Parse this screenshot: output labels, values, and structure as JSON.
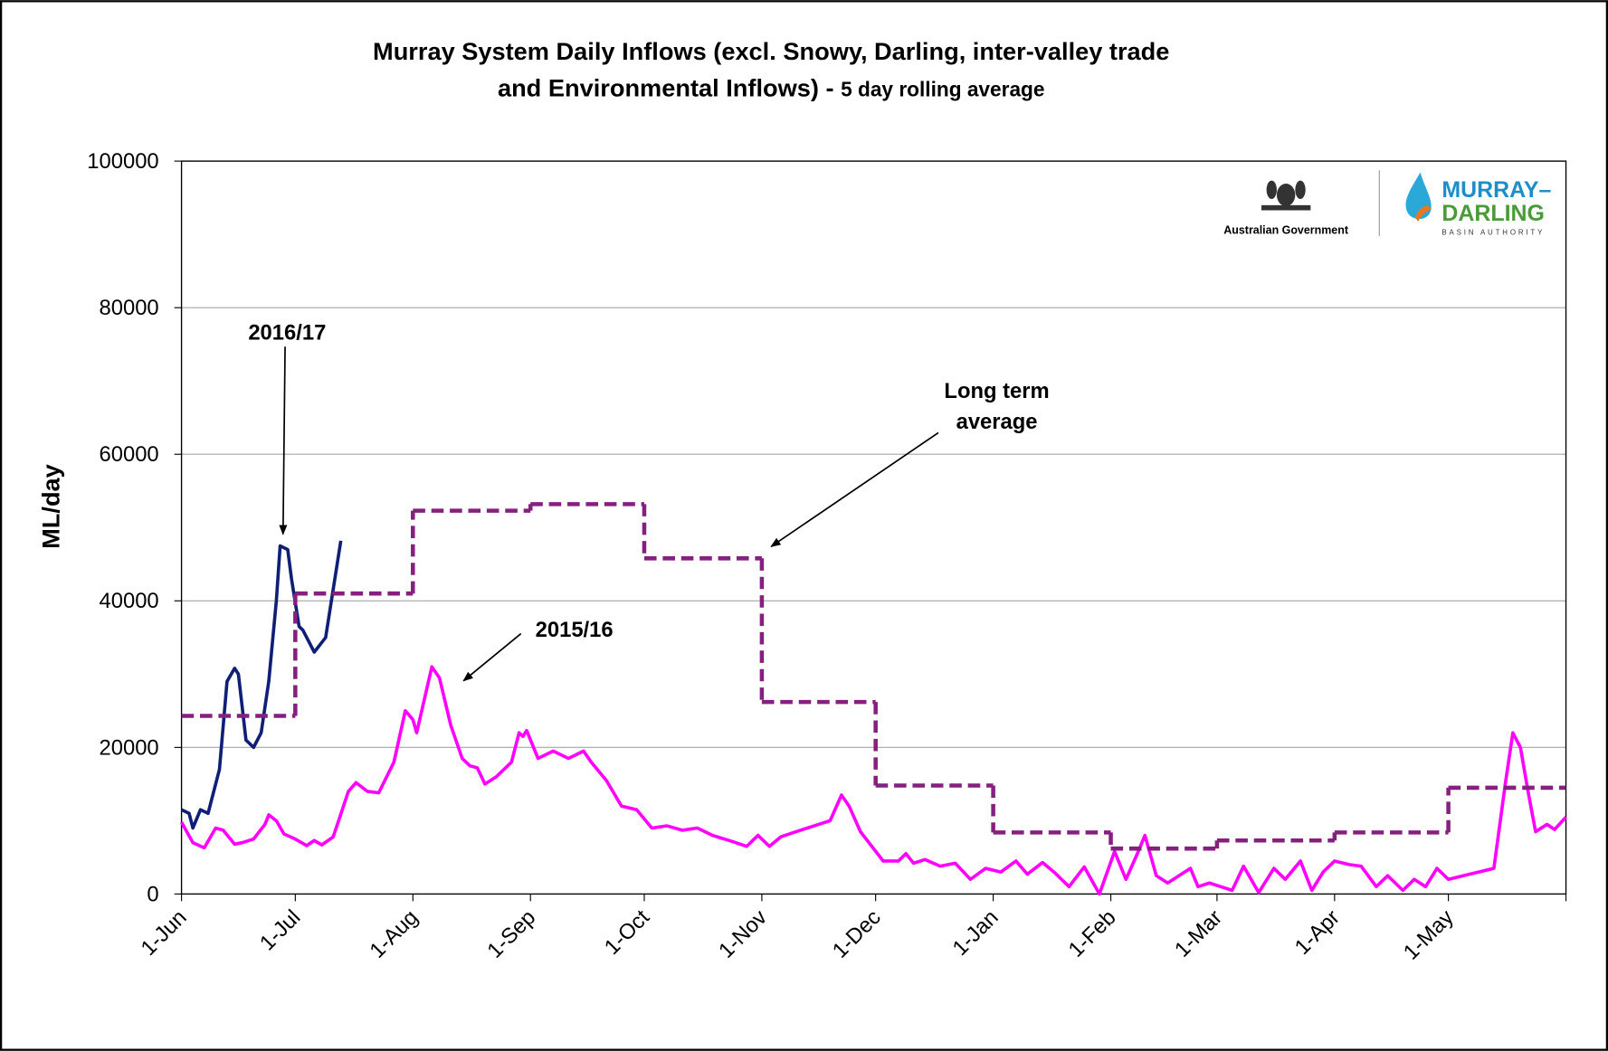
{
  "chart_data": {
    "type": "line",
    "title": [
      "Murray System Daily Inflows (excl. Snowy, Darling, inter-valley trade",
      "and Environmental Inflows) - "
    ],
    "subtitle": "5 day rolling average",
    "ylabel": "ML/day",
    "xlim": [
      0,
      365
    ],
    "xticks": [
      {
        "value": 0,
        "label": "1-Jun"
      },
      {
        "value": 30,
        "label": "1-Jul"
      },
      {
        "value": 61,
        "label": "1-Aug"
      },
      {
        "value": 92,
        "label": "1-Sep"
      },
      {
        "value": 122,
        "label": "1-Oct"
      },
      {
        "value": 153,
        "label": "1-Nov"
      },
      {
        "value": 183,
        "label": "1-Dec"
      },
      {
        "value": 214,
        "label": "1-Jan"
      },
      {
        "value": 245,
        "label": "1-Feb"
      },
      {
        "value": 273,
        "label": "1-Mar"
      },
      {
        "value": 304,
        "label": "1-Apr"
      },
      {
        "value": 334,
        "label": "1-May"
      },
      {
        "value": 365,
        "label": ""
      }
    ],
    "ylim": [
      0,
      100000
    ],
    "yticks": [
      0,
      20000,
      40000,
      60000,
      80000,
      100000
    ],
    "grid": true,
    "series": [
      {
        "color": "#ff00ff",
        "style": "solid",
        "x": [
          0,
          3,
          6,
          9,
          11,
          14,
          16,
          19,
          22,
          23,
          25,
          27,
          30,
          33,
          35,
          37,
          40,
          44,
          46,
          49,
          52,
          56,
          59,
          61,
          62,
          66,
          68,
          71,
          74,
          76,
          78,
          80,
          83,
          87,
          89,
          90,
          91,
          94,
          98,
          102,
          106,
          108,
          112,
          116,
          120,
          124,
          128,
          132,
          136,
          140,
          145,
          149,
          152,
          155,
          158,
          162,
          165,
          168,
          171,
          174,
          176,
          179,
          182,
          185,
          189,
          191,
          193,
          196,
          200,
          204,
          208,
          212,
          216,
          220,
          223,
          227,
          230,
          234,
          238,
          242,
          246,
          249,
          252,
          254,
          257,
          260,
          263,
          266,
          268,
          271,
          274,
          277,
          280,
          284,
          288,
          291,
          295,
          298,
          301,
          304,
          308,
          311,
          315,
          318,
          322,
          325,
          328,
          331,
          334,
          338,
          342,
          346,
          349,
          351,
          353,
          355,
          357,
          360,
          362,
          365
        ],
        "values": [
          9800,
          7000,
          6300,
          9000,
          8700,
          6800,
          7000,
          7500,
          9500,
          10800,
          10000,
          8200,
          7500,
          6600,
          7300,
          6700,
          7800,
          14000,
          15200,
          14000,
          13800,
          18000,
          25000,
          23800,
          22000,
          31000,
          29500,
          23000,
          18500,
          17500,
          17200,
          15000,
          16000,
          18000,
          22000,
          21500,
          22300,
          18500,
          19500,
          18500,
          19500,
          18000,
          15500,
          12000,
          11500,
          9000,
          9300,
          8700,
          9000,
          8000,
          7200,
          6500,
          8000,
          6500,
          7800,
          8500,
          9000,
          9500,
          10000,
          13500,
          12000,
          8500,
          6500,
          4500,
          4500,
          5500,
          4200,
          4700,
          3800,
          4200,
          2000,
          3500,
          3000,
          4500,
          2700,
          4300,
          3000,
          1000,
          3700,
          0,
          5800,
          2000,
          5500,
          8000,
          2500,
          1500,
          2500,
          3500,
          1000,
          1500,
          1000,
          500,
          3800,
          200,
          3500,
          2000,
          4500,
          500,
          3000,
          4500,
          4000,
          3800,
          1000,
          2500,
          500,
          2000,
          1000,
          3500,
          2000,
          2500,
          3000,
          3500,
          15000,
          22000,
          20000,
          14000,
          8500,
          9500,
          8800,
          10500
        ]
      },
      {
        "color": "#0f1f75",
        "style": "solid",
        "x": [
          0,
          2,
          3,
          5,
          7,
          10,
          12,
          14,
          15,
          17,
          19,
          21,
          23,
          25,
          26,
          28,
          29,
          31,
          32,
          35,
          38,
          42
        ],
        "values": [
          11500,
          11000,
          9000,
          11500,
          11000,
          17000,
          29000,
          30800,
          30000,
          21000,
          20000,
          22000,
          29000,
          40000,
          47500,
          47000,
          43000,
          36500,
          36000,
          33000,
          35000,
          48200
        ]
      },
      {
        "color": "#85207f",
        "style": "dashed",
        "drawstyle": "steps-post",
        "x": [
          0,
          30,
          61,
          92,
          122,
          153,
          183,
          214,
          245,
          273,
          304,
          334
        ],
        "values": [
          24300,
          41000,
          52300,
          53200,
          45800,
          26200,
          14800,
          8400,
          6200,
          7300,
          8400,
          14500
        ]
      }
    ],
    "annotations": [
      {
        "text": [
          "2016/17"
        ]
      },
      {
        "text": [
          "2015/16"
        ]
      },
      {
        "text": [
          "Long term",
          "average"
        ]
      }
    ],
    "logos": {
      "government": "Australian Government",
      "authority": [
        "MURRAY–",
        "DARLING"
      ],
      "authority_sub": "BASIN AUTHORITY"
    }
  }
}
